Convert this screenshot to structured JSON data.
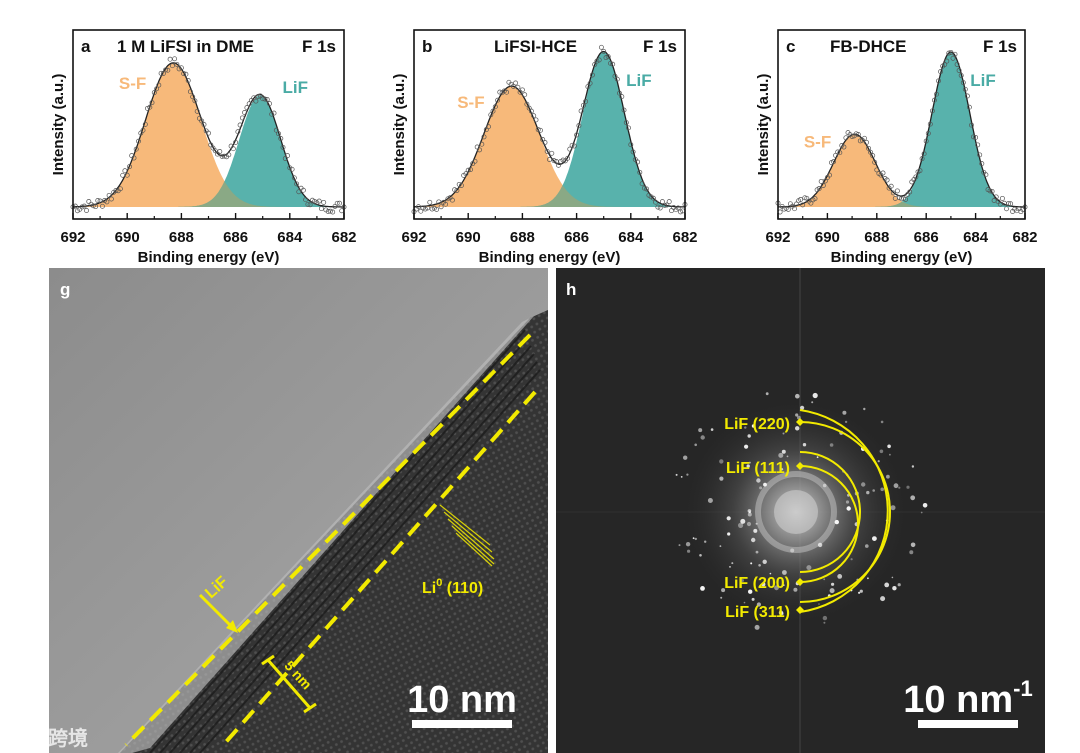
{
  "colors": {
    "sf_fill": "#f7b97a",
    "lif_fill": "#4aaba5",
    "overlap_fill": "#8aa985",
    "envelope": "#222222",
    "annotation_yellow": "#f2ea00",
    "micro_dark": "#2b2b2b",
    "fft_bg": "#262626"
  },
  "chart_data": [
    {
      "type": "area",
      "panel_letter": "a",
      "title": "1 M LiFSI in DME",
      "region": "F 1s",
      "xlabel": "Binding energy (eV)",
      "ylabel": "Intensity (a.u.)",
      "xlim": [
        692,
        682
      ],
      "xticks": [
        "692",
        "690",
        "688",
        "686",
        "684",
        "682"
      ],
      "series": [
        {
          "name": "S-F",
          "center": 688.3,
          "height": 0.93,
          "fwhm": 2.4
        },
        {
          "name": "LiF",
          "center": 685.1,
          "height": 0.72,
          "fwhm": 1.8
        }
      ]
    },
    {
      "type": "area",
      "panel_letter": "b",
      "title": "LiFSI-HCE",
      "region": "F 1s",
      "xlabel": "Binding energy (eV)",
      "ylabel": "Intensity (a.u.)",
      "xlim": [
        692,
        682
      ],
      "xticks": [
        "692",
        "690",
        "688",
        "686",
        "684",
        "682"
      ],
      "series": [
        {
          "name": "S-F",
          "center": 688.4,
          "height": 0.78,
          "fwhm": 2.4
        },
        {
          "name": "LiF",
          "center": 685.0,
          "height": 1.0,
          "fwhm": 1.8
        }
      ]
    },
    {
      "type": "area",
      "panel_letter": "c",
      "title": "FB-DHCE",
      "region": "F 1s",
      "xlabel": "Binding energy (eV)",
      "ylabel": "Intensity (a.u.)",
      "xlim": [
        692,
        682
      ],
      "xticks": [
        "692",
        "690",
        "688",
        "686",
        "684",
        "682"
      ],
      "series": [
        {
          "name": "S-F",
          "center": 688.9,
          "height": 0.47,
          "fwhm": 2.0
        },
        {
          "name": "LiF",
          "center": 685.0,
          "height": 1.0,
          "fwhm": 1.8
        }
      ]
    }
  ],
  "micrographs": {
    "tem": {
      "letter": "g",
      "layer_label": "LiF",
      "thickness_label": "5 nm",
      "lattice_label_main": "Li",
      "lattice_label_sup": "0",
      "lattice_label_rest": " (110)",
      "scale_text": "10 nm"
    },
    "fft": {
      "letter": "h",
      "rings": [
        "LiF (220)",
        "LiF (111)",
        "LiF (200)",
        "LiF (311)"
      ],
      "scale_text": "10 nm",
      "scale_sup": "-1"
    }
  },
  "watermark": "大数跨境"
}
